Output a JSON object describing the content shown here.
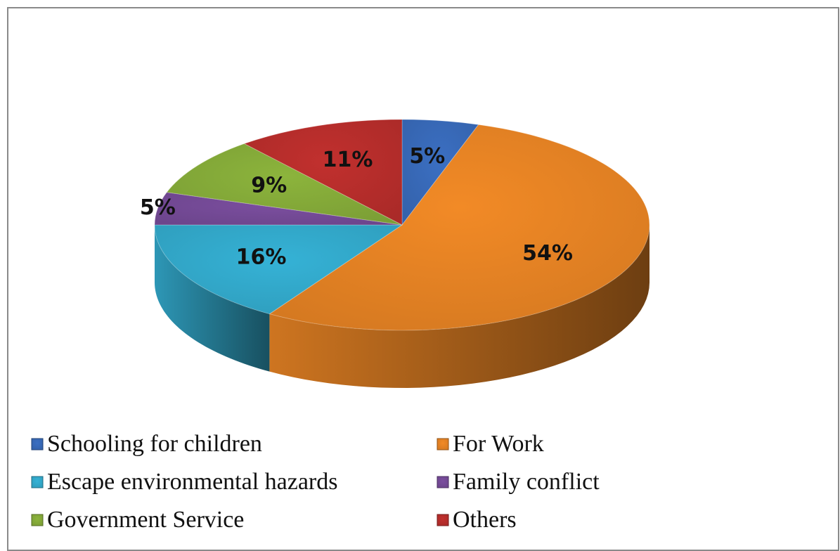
{
  "chart_data": {
    "type": "pie",
    "categories": [
      "Schooling for children",
      "For Work",
      "Escape environmental hazards",
      "Family conflict",
      "Government Service",
      "Others"
    ],
    "values": [
      5,
      54,
      16,
      5,
      9,
      11
    ],
    "value_labels": [
      "5%",
      "54%",
      "16%",
      "5%",
      "9%",
      "11%"
    ],
    "colors": [
      "#3b6fc2",
      "#f28a26",
      "#35b2d6",
      "#7b4e9f",
      "#8cb43c",
      "#c1302e"
    ],
    "legend": "bottom"
  }
}
